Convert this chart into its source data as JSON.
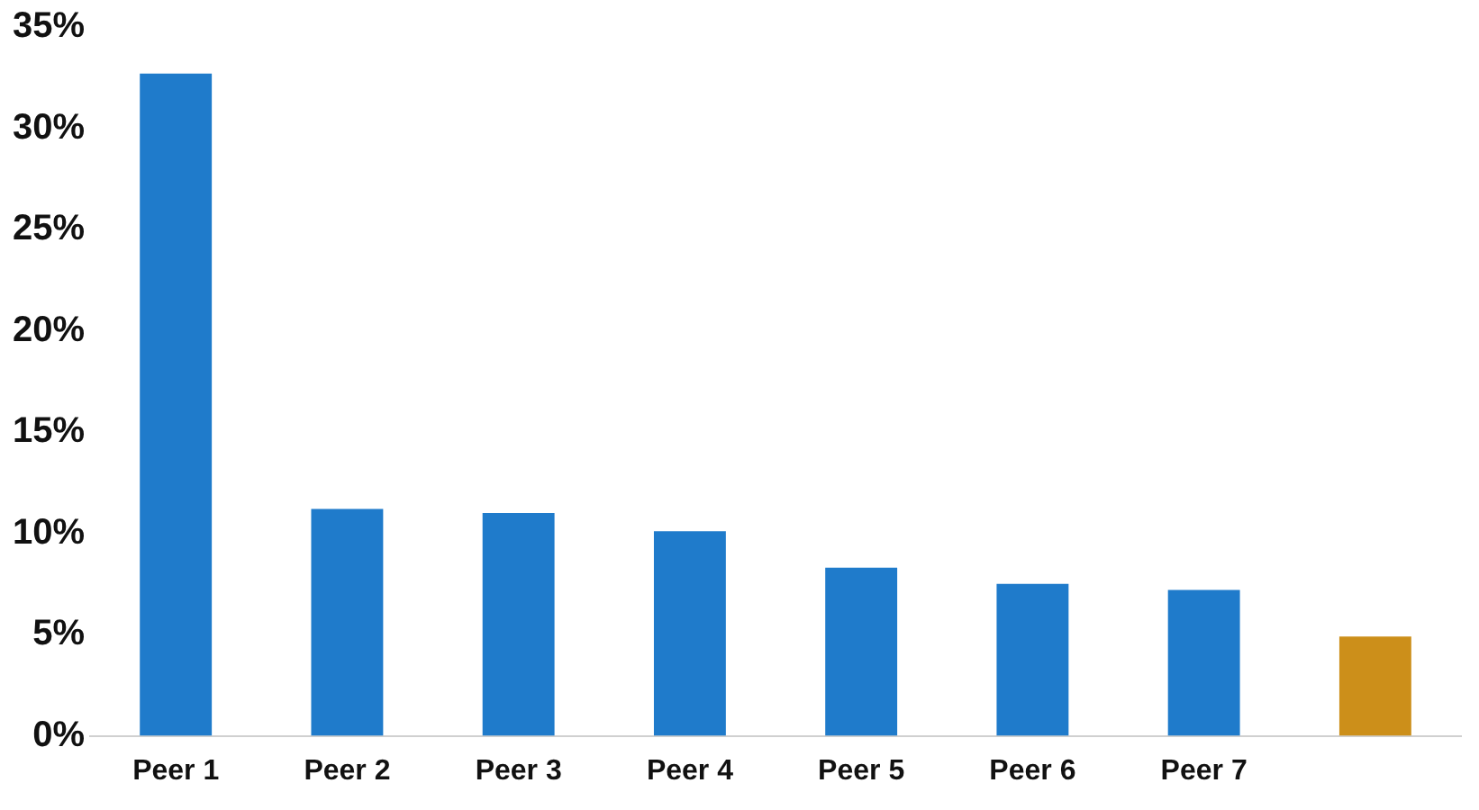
{
  "chart_data": {
    "type": "bar",
    "categories": [
      "Peer 1",
      "Peer 2",
      "Peer 3",
      "Peer 4",
      "Peer 5",
      "Peer 6",
      "Peer 7",
      null
    ],
    "values": [
      32.7,
      11.2,
      11.0,
      10.1,
      8.3,
      7.5,
      7.2,
      4.9
    ],
    "colors": [
      "#1f7bcb",
      "#1f7bcb",
      "#1f7bcb",
      "#1f7bcb",
      "#1f7bcb",
      "#1f7bcb",
      "#1f7bcb",
      "#cc8f1a"
    ],
    "ylim": [
      0,
      35
    ],
    "yticks": [
      {
        "value": 0,
        "label": "0%"
      },
      {
        "value": 5,
        "label": "5%"
      },
      {
        "value": 10,
        "label": "10%"
      },
      {
        "value": 15,
        "label": "15%"
      },
      {
        "value": 20,
        "label": "20%"
      },
      {
        "value": 25,
        "label": "25%"
      },
      {
        "value": 30,
        "label": "30%"
      },
      {
        "value": 35,
        "label": "35%"
      }
    ],
    "grid": false,
    "legend": false
  }
}
